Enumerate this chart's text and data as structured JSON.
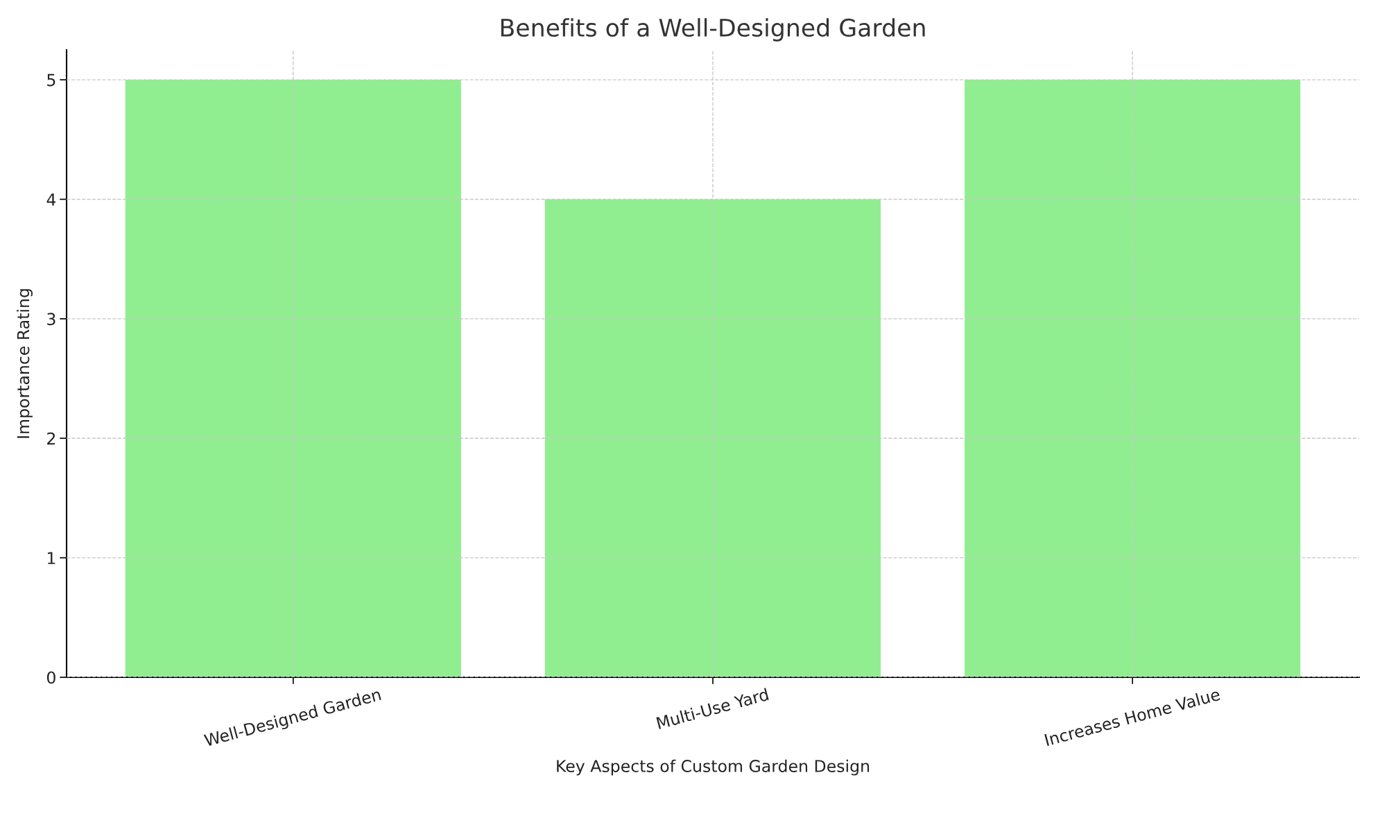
{
  "chart_data": {
    "type": "bar",
    "title": "Benefits of a Well-Designed Garden",
    "xlabel": "Key Aspects of Custom Garden Design",
    "ylabel": "Importance Rating",
    "categories": [
      "Well-Designed Garden",
      "Multi-Use Yard",
      "Increases Home Value"
    ],
    "values": [
      5,
      4,
      5
    ],
    "color": "#90ee90",
    "ylim": [
      0,
      5.25
    ],
    "yticks": [
      0,
      1,
      2,
      3,
      4,
      5
    ],
    "grid": true
  }
}
